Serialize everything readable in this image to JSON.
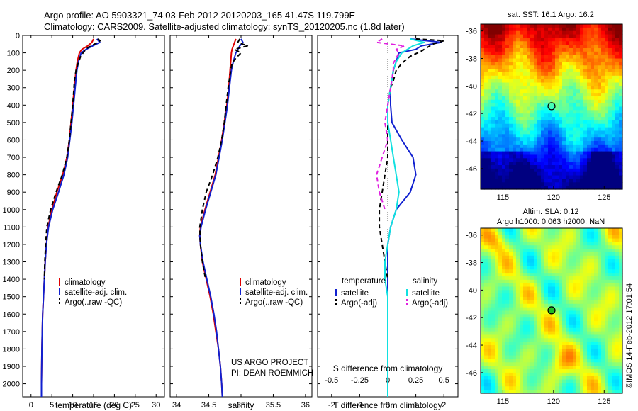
{
  "header": {
    "line1": "Argo profile: AO 5903321_74 03-Feb-2012 20120203_165 41.47S 119.799E",
    "line2": "Climatology: CARS2009. Satellite-adjusted climatology: synTS_20120205.nc (1.8d later)"
  },
  "colors": {
    "climatology": "#e00000",
    "satellite": "#1020d0",
    "argo": "#000000",
    "satellite_salinity": "#10e0e0",
    "argo_salinity": "#e020e0"
  },
  "annotations": {
    "project": "US ARGO PROJECT",
    "pi": "PI: DEAN ROEMMICH",
    "timestamp": "©IMOS 14-Feb-2012 17:01:54"
  },
  "chart_data": [
    {
      "type": "line",
      "xlabel": "temperature (deg C)",
      "xticks": [
        "0",
        "5",
        "10",
        "15",
        "20",
        "25",
        "30"
      ],
      "xlim": [
        -2,
        32
      ],
      "ylim": [
        2075,
        0
      ],
      "yticks": [
        "0",
        "100",
        "200",
        "300",
        "400",
        "500",
        "600",
        "700",
        "800",
        "900",
        "1000",
        "1100",
        "1200",
        "1300",
        "1400",
        "1500",
        "1600",
        "1700",
        "1800",
        "1900",
        "2000"
      ],
      "legend": [
        "climatology",
        "satellite-adj. clim.",
        "Argo(..raw -QC)"
      ],
      "series": [
        {
          "name": "climatology",
          "color_key": "climatology",
          "depth": [
            20,
            40,
            60,
            80,
            100,
            150,
            200,
            300,
            400,
            500,
            600,
            700,
            800,
            900,
            1000,
            1100,
            1200,
            1300,
            1400,
            1500,
            1600,
            1700,
            1800,
            1900,
            2000,
            2075
          ],
          "values": [
            15.0,
            14.6,
            13.6,
            12.2,
            11.6,
            11.1,
            10.8,
            10.4,
            10.0,
            9.6,
            9.2,
            8.6,
            7.6,
            6.2,
            5.0,
            4.1,
            3.7,
            3.4,
            3.2,
            3.0,
            2.8,
            2.7,
            2.6,
            2.55,
            2.5,
            2.5
          ]
        },
        {
          "name": "satellite-adj. clim.",
          "color_key": "satellite",
          "depth": [
            20,
            40,
            60,
            80,
            100,
            150,
            200,
            300,
            400,
            500,
            600,
            700,
            800,
            900,
            1000,
            1100,
            1200,
            1300,
            1400,
            1500,
            1600,
            1700,
            1800,
            1900,
            2000,
            2075
          ],
          "values": [
            15.8,
            16.5,
            14.8,
            13.2,
            12.0,
            11.4,
            11.0,
            10.6,
            10.2,
            9.8,
            9.3,
            8.8,
            7.9,
            6.6,
            5.2,
            4.2,
            3.7,
            3.4,
            3.2,
            3.0,
            2.8,
            2.7,
            2.6,
            2.55,
            2.5,
            2.5
          ]
        },
        {
          "name": "Argo(..raw -QC)",
          "color_key": "argo",
          "dashed": true,
          "depth": [
            20,
            30,
            50,
            70,
            90,
            120,
            160,
            200,
            260,
            300,
            400,
            500,
            600,
            700,
            800,
            900,
            1000,
            1100,
            1200,
            1300,
            1400
          ],
          "values": [
            16.0,
            16.6,
            15.2,
            13.6,
            12.8,
            11.9,
            11.3,
            10.8,
            10.4,
            10.3,
            10.0,
            9.6,
            9.2,
            8.6,
            7.5,
            6.0,
            4.7,
            3.8,
            3.5,
            3.3,
            3.2
          ]
        }
      ]
    },
    {
      "type": "line",
      "xlabel": "salinity",
      "xticks": [
        "34",
        "34.5",
        "35",
        "35.5",
        "36"
      ],
      "xlim": [
        33.9,
        36.1
      ],
      "ylim": [
        2075,
        0
      ],
      "legend": [
        "climatology",
        "satellite-adj. clim.",
        "Argo(..raw -QC)"
      ],
      "series": [
        {
          "name": "climatology",
          "color_key": "climatology",
          "depth": [
            20,
            40,
            60,
            80,
            100,
            150,
            200,
            300,
            400,
            500,
            600,
            700,
            800,
            900,
            1000,
            1100,
            1150,
            1200,
            1300,
            1400,
            1500,
            1600,
            1700,
            1800,
            1900,
            2000,
            2075
          ],
          "values": [
            34.92,
            34.9,
            34.88,
            34.86,
            34.85,
            34.84,
            34.83,
            34.81,
            34.78,
            34.74,
            34.7,
            34.65,
            34.6,
            34.52,
            34.44,
            34.37,
            34.36,
            34.37,
            34.4,
            34.46,
            34.52,
            34.57,
            34.61,
            34.65,
            34.68,
            34.7,
            34.71
          ]
        },
        {
          "name": "satellite-adj. clim.",
          "color_key": "satellite",
          "depth": [
            20,
            40,
            60,
            80,
            100,
            150,
            200,
            300,
            400,
            500,
            600,
            700,
            800,
            900,
            1000,
            1100,
            1150,
            1200,
            1300,
            1400,
            1500,
            1600,
            1700,
            1800,
            1900,
            2000,
            2075
          ],
          "values": [
            35.0,
            35.03,
            34.98,
            34.95,
            34.92,
            34.88,
            34.85,
            34.82,
            34.79,
            34.75,
            34.71,
            34.66,
            34.61,
            34.53,
            34.45,
            34.38,
            34.36,
            34.37,
            34.41,
            34.47,
            34.53,
            34.58,
            34.62,
            34.65,
            34.68,
            34.7,
            34.71
          ]
        },
        {
          "name": "Argo(..raw -QC)",
          "color_key": "argo",
          "dashed": true,
          "depth": [
            20,
            40,
            60,
            80,
            100,
            130,
            160,
            200,
            300,
            400,
            500,
            600,
            700,
            800,
            900,
            1000,
            1100,
            1200,
            1300,
            1400
          ],
          "values": [
            34.98,
            34.95,
            35.1,
            34.9,
            35.0,
            34.92,
            34.86,
            34.84,
            34.8,
            34.77,
            34.74,
            34.7,
            34.64,
            34.56,
            34.46,
            34.4,
            34.36,
            34.37,
            34.4,
            34.45
          ]
        }
      ]
    },
    {
      "type": "line",
      "xlabel": "T difference from climatology",
      "xticks": [
        "-2",
        "-1",
        "0",
        "1",
        "2"
      ],
      "xlim": [
        -2.5,
        2.5
      ],
      "top_xlabel": "S difference from climatology",
      "top_xticks": [
        "-0.5",
        "-0.25",
        "0",
        "0.25",
        "0.5"
      ],
      "ylim": [
        2075,
        0
      ],
      "legend_headers": [
        "temperature",
        "salinity"
      ],
      "legend": [
        "satellite",
        "Argo(-adj)",
        "satellite",
        "Argo(-adj)"
      ],
      "series": [
        {
          "name": "satellite",
          "color_key": "satellite",
          "depth": [
            20,
            40,
            60,
            80,
            100,
            150,
            200,
            300,
            400,
            500,
            600,
            700,
            800,
            900,
            1000,
            1100,
            1200,
            1300,
            1400,
            1500,
            1600,
            1700,
            1800,
            1900,
            2000,
            2075
          ],
          "values": [
            0.8,
            1.9,
            1.2,
            1.0,
            0.4,
            0.3,
            0.2,
            0.1,
            0.1,
            0.15,
            0.5,
            0.9,
            1.0,
            0.8,
            0.3,
            0.1,
            0.0,
            0.0,
            0.0,
            0.0,
            0.0,
            0.0,
            0.0,
            0.0,
            0.0,
            0.0
          ]
        },
        {
          "name": "Argo(-adj)",
          "color_key": "argo",
          "dashed": true,
          "depth": [
            20,
            30,
            50,
            70,
            90,
            120,
            160,
            200,
            260,
            300,
            400,
            500,
            600,
            700,
            800,
            900,
            1000,
            1100,
            1200,
            1300,
            1400
          ],
          "values": [
            1.0,
            2.0,
            1.6,
            1.4,
            1.2,
            0.8,
            0.5,
            0.3,
            0.2,
            0.1,
            0.0,
            0.0,
            0.0,
            0.0,
            -0.1,
            -0.2,
            -0.3,
            -0.3,
            -0.2,
            -0.1,
            0.0
          ]
        },
        {
          "name": "satellite",
          "color_key": "satellite_salinity",
          "depth": [
            20,
            40,
            60,
            80,
            100,
            150,
            200,
            300,
            400,
            500,
            600,
            700,
            800,
            900,
            1000,
            1100,
            1200,
            1300,
            1400,
            1500,
            1600,
            1700,
            1800,
            1900,
            2000,
            2075
          ],
          "values": [
            0.8,
            1.3,
            0.9,
            0.7,
            0.5,
            0.3,
            0.2,
            0.1,
            0.0,
            0.0,
            0.1,
            0.2,
            0.3,
            0.4,
            0.3,
            0.1,
            0.0,
            -0.1,
            -0.1,
            0.0,
            0.0,
            0.0,
            0.0,
            0.0,
            0.0,
            0.0
          ]
        },
        {
          "name": "Argo(-adj)",
          "color_key": "argo_salinity",
          "dashed": true,
          "depth": [
            20,
            40,
            60,
            80,
            100,
            130,
            160,
            200,
            300,
            400,
            500,
            600,
            700,
            800,
            900,
            1000
          ],
          "values": [
            -0.2,
            -0.4,
            0.6,
            0.3,
            0.4,
            0.3,
            0.2,
            0.2,
            0.1,
            0.0,
            -0.1,
            0.0,
            -0.2,
            -0.4,
            -0.3,
            -0.1
          ]
        }
      ]
    },
    {
      "type": "heatmap",
      "title": "sat. SST: 16.1 Argo: 16.2",
      "xticks": [
        "115",
        "120",
        "125"
      ],
      "yticks": [
        "-36",
        "-38",
        "-40",
        "-42",
        "-44",
        "-46"
      ],
      "xlim": [
        112.8,
        126.8
      ],
      "ylim": [
        -47.5,
        -35.5
      ],
      "marker": {
        "lon": 119.799,
        "lat": -41.47
      },
      "colormap": "jet"
    },
    {
      "type": "heatmap",
      "title_line1": "Altim. SLA: 0.12",
      "title_line2": "Argo h1000: 0.063 h2000: NaN",
      "xticks": [
        "115",
        "120",
        "125"
      ],
      "yticks": [
        "-36",
        "-38",
        "-40",
        "-42",
        "-44",
        "-46"
      ],
      "xlim": [
        112.8,
        126.8
      ],
      "ylim": [
        -47.5,
        -35.5
      ],
      "marker": {
        "lon": 119.799,
        "lat": -41.47
      },
      "colormap": "jet"
    }
  ]
}
